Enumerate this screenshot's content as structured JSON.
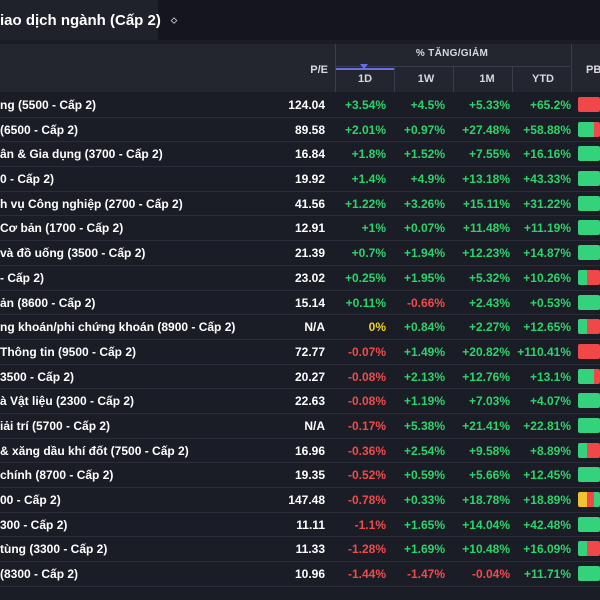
{
  "tab": {
    "title": "iao dịch ngành (Cấp 2)",
    "caret": "⬦"
  },
  "header": {
    "group": "% TĂNG/GIẢM",
    "pe": "P/E",
    "d1": "1D",
    "w1": "1W",
    "m1": "1M",
    "ytd": "YTD",
    "pb": "PB"
  },
  "colors": {
    "positive": "#2bd46b",
    "negative": "#f04b4b",
    "zero": "#f2d21a",
    "bar_green": "#34d27a",
    "bar_red": "#f04848",
    "bar_yellow": "#f2c232"
  },
  "rows": [
    {
      "name": "ng (5500 - Cấp 2)",
      "pe": "124.04",
      "d1": "+3.54%",
      "w1": "+4.5%",
      "m1": "+5.33%",
      "ytd": "+65.2%",
      "bar": [
        "red",
        "red",
        "red"
      ]
    },
    {
      "name": "(6500 - Cấp 2)",
      "pe": "89.58",
      "d1": "+2.01%",
      "w1": "+0.97%",
      "m1": "+27.48%",
      "ytd": "+58.88%",
      "bar": [
        "green",
        "green",
        "red"
      ]
    },
    {
      "name": "ân & Gia dụng (3700 - Cấp 2)",
      "pe": "16.84",
      "d1": "+1.8%",
      "w1": "+1.52%",
      "m1": "+7.55%",
      "ytd": "+16.16%",
      "bar": [
        "green",
        "green",
        "green"
      ]
    },
    {
      "name": "0 - Cấp 2)",
      "pe": "19.92",
      "d1": "+1.4%",
      "w1": "+4.9%",
      "m1": "+13.18%",
      "ytd": "+43.33%",
      "bar": [
        "green",
        "green",
        "green"
      ]
    },
    {
      "name": "h vụ Công nghiệp (2700 - Cấp 2)",
      "pe": "41.56",
      "d1": "+1.22%",
      "w1": "+3.26%",
      "m1": "+15.11%",
      "ytd": "+31.22%",
      "bar": [
        "green",
        "green",
        "green"
      ]
    },
    {
      "name": "Cơ bản (1700 - Cấp 2)",
      "pe": "12.91",
      "d1": "+1%",
      "w1": "+0.07%",
      "m1": "+11.48%",
      "ytd": "+11.19%",
      "bar": [
        "green",
        "green",
        "green"
      ]
    },
    {
      "name": "và đồ uống (3500 - Cấp 2)",
      "pe": "21.39",
      "d1": "+0.7%",
      "w1": "+1.94%",
      "m1": "+12.23%",
      "ytd": "+14.87%",
      "bar": [
        "green",
        "green",
        "green"
      ]
    },
    {
      "name": "- Cấp 2)",
      "pe": "23.02",
      "d1": "+0.25%",
      "w1": "+1.95%",
      "m1": "+5.32%",
      "ytd": "+10.26%",
      "bar": [
        "green",
        "red",
        "red"
      ]
    },
    {
      "name": "ản (8600 - Cấp 2)",
      "pe": "15.14",
      "d1": "+0.11%",
      "w1": "-0.66%",
      "m1": "+2.43%",
      "ytd": "+0.53%",
      "bar": [
        "green",
        "green",
        "green"
      ]
    },
    {
      "name": "ng khoán/phi chứng khoán (8900 - Cấp 2)",
      "pe": "N/A",
      "d1": "0%",
      "w1": "+0.84%",
      "m1": "+2.27%",
      "ytd": "+12.65%",
      "bar": [
        "green",
        "red",
        "red"
      ]
    },
    {
      "name": "Thông tin (9500 - Cấp 2)",
      "pe": "72.77",
      "d1": "-0.07%",
      "w1": "+1.49%",
      "m1": "+20.82%",
      "ytd": "+110.41%",
      "bar": [
        "red",
        "red",
        "red"
      ]
    },
    {
      "name": "3500 - Cấp 2)",
      "pe": "20.27",
      "d1": "-0.08%",
      "w1": "+2.13%",
      "m1": "+12.76%",
      "ytd": "+13.1%",
      "bar": [
        "green",
        "green",
        "red"
      ]
    },
    {
      "name": "à Vật liệu (2300 - Cấp 2)",
      "pe": "22.63",
      "d1": "-0.08%",
      "w1": "+1.19%",
      "m1": "+7.03%",
      "ytd": "+4.07%",
      "bar": [
        "green",
        "green",
        "green"
      ]
    },
    {
      "name": "iải trí (5700 - Cấp 2)",
      "pe": "N/A",
      "d1": "-0.17%",
      "w1": "+5.38%",
      "m1": "+21.41%",
      "ytd": "+22.81%",
      "bar": [
        "green",
        "green",
        "green"
      ]
    },
    {
      "name": "& xăng dầu khí đốt (7500 - Cấp 2)",
      "pe": "16.96",
      "d1": "-0.36%",
      "w1": "+2.54%",
      "m1": "+9.58%",
      "ytd": "+8.89%",
      "bar": [
        "green",
        "red",
        "red"
      ]
    },
    {
      "name": "chính (8700 - Cấp 2)",
      "pe": "19.35",
      "d1": "-0.52%",
      "w1": "+0.59%",
      "m1": "+5.66%",
      "ytd": "+12.45%",
      "bar": [
        "green",
        "green",
        "green"
      ]
    },
    {
      "name": "00 - Cấp 2)",
      "pe": "147.48",
      "d1": "-0.78%",
      "w1": "+0.33%",
      "m1": "+18.78%",
      "ytd": "+18.89%",
      "bar": [
        "yellow",
        "red",
        "green"
      ]
    },
    {
      "name": "300 - Cấp 2)",
      "pe": "11.11",
      "d1": "-1.1%",
      "w1": "+1.65%",
      "m1": "+14.04%",
      "ytd": "+42.48%",
      "bar": [
        "green",
        "green",
        "green"
      ]
    },
    {
      "name": "tùng (3300 - Cấp 2)",
      "pe": "11.33",
      "d1": "-1.28%",
      "w1": "+1.69%",
      "m1": "+10.48%",
      "ytd": "+16.09%",
      "bar": [
        "green",
        "red",
        "red"
      ]
    },
    {
      "name": "(8300 - Cấp 2)",
      "pe": "10.96",
      "d1": "-1.44%",
      "w1": "-1.47%",
      "m1": "-0.04%",
      "ytd": "+11.71%",
      "bar": [
        "green",
        "green",
        "green"
      ]
    }
  ]
}
